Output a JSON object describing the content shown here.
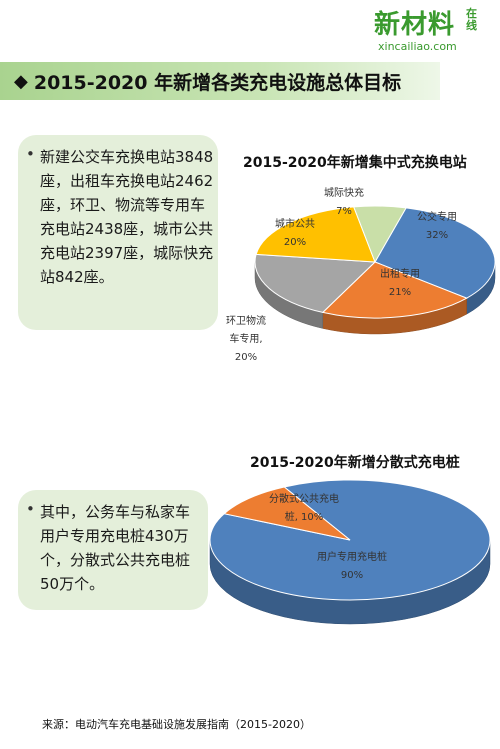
{
  "logo": {
    "main": "新材料",
    "side": "在线",
    "url": "xincailiao.com"
  },
  "title": "2015-2020 年新增各类充电设施总体目标",
  "notes": [
    {
      "text": "新建公交车充换电站3848座，出租车充换电站2462座，环卫、物流等专用车充电站2438座，城市公共充电站2397座，城际快充站842座。"
    },
    {
      "text": "其中，公务车与私家车用户专用充电桩430万个，分散式公共充电桩50万个。"
    }
  ],
  "chart_data": [
    {
      "type": "pie",
      "title": "2015-2020年新增集中式充换电站",
      "slices": [
        {
          "label": "公交专用",
          "pct_label": "32%",
          "value": 32,
          "color": "#4f81bd"
        },
        {
          "label": "出租专用",
          "pct_label": "21%",
          "value": 21,
          "color": "#ed7d31"
        },
        {
          "label": "环卫物流车专用",
          "pct_label": "20%",
          "value": 20,
          "color": "#a5a5a5"
        },
        {
          "label": "城市公共",
          "pct_label": "20%",
          "value": 20,
          "color": "#ffc000"
        },
        {
          "label": "城际快充",
          "pct_label": "7%",
          "value": 7,
          "color": "#c9dfa8"
        }
      ]
    },
    {
      "type": "pie",
      "title": "2015-2020年新增分散式充电桩",
      "slices": [
        {
          "label": "用户专用充电桩",
          "pct_label": "90%",
          "value": 90,
          "color": "#4f81bd"
        },
        {
          "label": "分散式公共充电桩",
          "pct_label": "10%",
          "value": 10,
          "color": "#ed7d31"
        }
      ]
    }
  ],
  "source": "来源：电动汽车充电基础设施发展指南（2015-2020）"
}
